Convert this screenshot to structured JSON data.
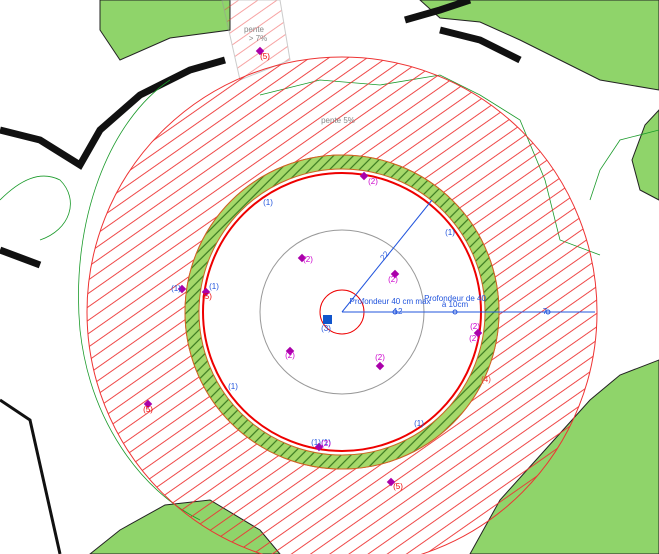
{
  "annotations": [
    "pente",
    "> 7%",
    "pente 5%",
    "Profondeur 40 cm max",
    "Profondeur de 40",
    "à 10cm",
    "22",
    "12",
    "7"
  ],
  "markers": [
    "(5)",
    "(1)",
    "(2)",
    "(1)",
    "(1)",
    "(2)",
    "(2)",
    "(1)",
    "(5)",
    "(2)",
    "(3)",
    "(2)",
    "(2)",
    "(2)",
    "(1)",
    "(1)",
    "(4)",
    "(5)",
    "(1)",
    "(1)",
    "(2)",
    "(5)"
  ]
}
